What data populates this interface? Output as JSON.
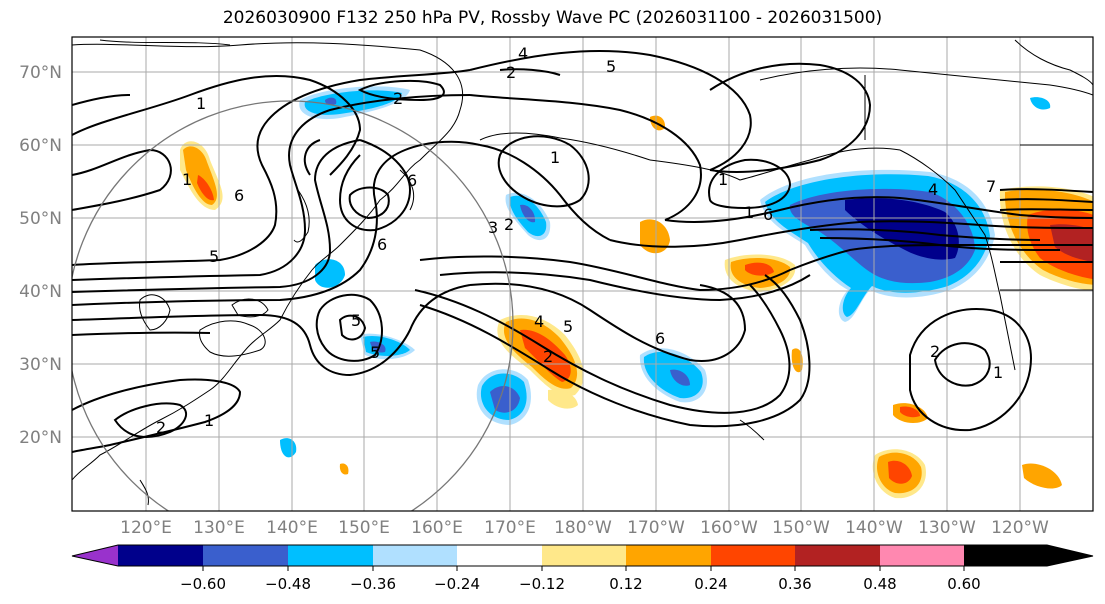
{
  "title": "2026030900 F132 250 hPa PV, Rossby Wave PC (2026031100 - 2026031500)",
  "lat_labels": [
    "70°N",
    "60°N",
    "50°N",
    "40°N",
    "30°N",
    "20°N"
  ],
  "lon_labels": [
    "120°E",
    "130°E",
    "140°E",
    "150°E",
    "160°E",
    "170°E",
    "180°W",
    "170°W",
    "160°W",
    "150°W",
    "140°W",
    "130°W",
    "120°W"
  ],
  "colorbar": {
    "ticks": [
      "−0.60",
      "−0.48",
      "−0.36",
      "−0.24",
      "−0.12",
      "0.12",
      "0.24",
      "0.36",
      "0.48",
      "0.60"
    ],
    "colors": [
      "#9932cc",
      "#00008b",
      "#3a5fcd",
      "#00bfff",
      "#b0e0ff",
      "#ffffff",
      "#ffe88a",
      "#ffa500",
      "#ff4500",
      "#b22222",
      "#ff88b0"
    ]
  },
  "contour_labels": [
    "1",
    "2",
    "4",
    "5",
    "2",
    "1",
    "6",
    "5",
    "6",
    "5",
    "3",
    "2",
    "1",
    "1",
    "6",
    "5",
    "4",
    "5",
    "2",
    "6",
    "1",
    "6",
    "4",
    "7",
    "2",
    "1",
    "1",
    "2"
  ],
  "shading_colors": {
    "positive_light": "#ffe88a",
    "positive_mid": "#ffa500",
    "positive_strong": "#ff4500",
    "positive_max": "#b22222",
    "negative_light": "#b0e0ff",
    "negative_mid": "#00bfff",
    "negative_strong": "#3a5fcd",
    "negative_max": "#00008b"
  }
}
